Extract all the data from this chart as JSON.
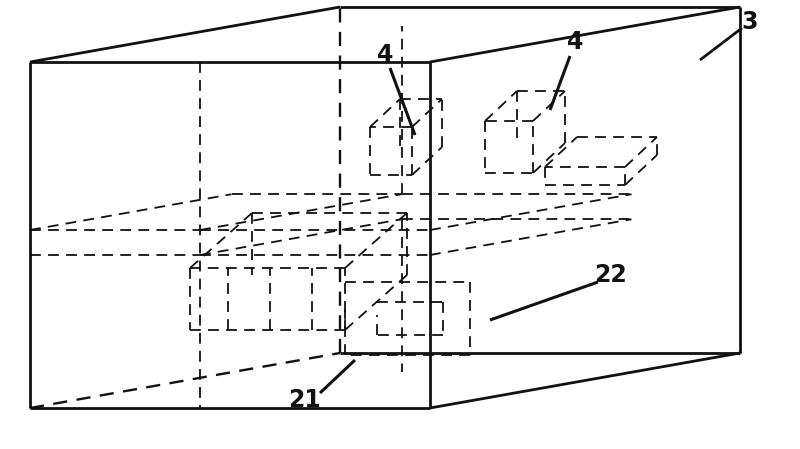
{
  "bg_color": "#ffffff",
  "line_color": "#111111",
  "lw_solid": 2.0,
  "lw_dashed": 1.3,
  "figsize": [
    8.0,
    4.49
  ],
  "dpi": 100
}
